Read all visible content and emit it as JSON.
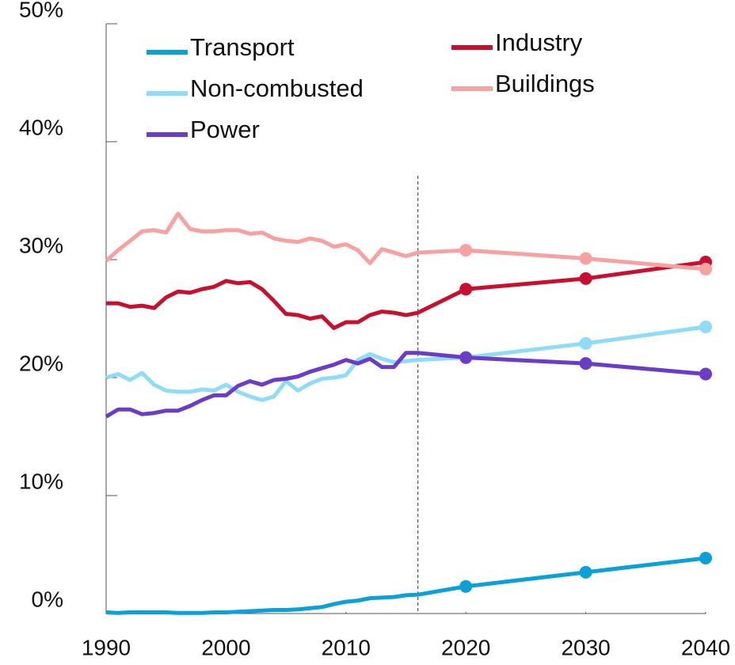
{
  "chart_data": {
    "type": "line",
    "x": [
      1990,
      1991,
      1992,
      1993,
      1994,
      1995,
      1996,
      1997,
      1998,
      1999,
      2000,
      2001,
      2002,
      2003,
      2004,
      2005,
      2006,
      2007,
      2008,
      2009,
      2010,
      2011,
      2012,
      2013,
      2014,
      2015,
      2016,
      2020,
      2030,
      2040
    ],
    "series": [
      {
        "name": "Transport",
        "color": "#0aa0d8",
        "values": [
          0.1,
          0.05,
          0.1,
          0.1,
          0.1,
          0.1,
          0.05,
          0.05,
          0.05,
          0.1,
          0.1,
          0.15,
          0.2,
          0.25,
          0.3,
          0.3,
          0.35,
          0.45,
          0.55,
          0.8,
          1.0,
          1.1,
          1.3,
          1.35,
          1.4,
          1.55,
          1.6,
          2.3,
          3.5,
          4.7
        ]
      },
      {
        "name": "Industry",
        "color": "#c8102e",
        "values": [
          26.3,
          26.3,
          26.0,
          26.1,
          25.9,
          26.8,
          27.3,
          27.2,
          27.5,
          27.7,
          28.2,
          28.0,
          28.1,
          27.5,
          26.5,
          25.4,
          25.3,
          25.0,
          25.2,
          24.2,
          24.7,
          24.7,
          25.3,
          25.6,
          25.5,
          25.3,
          25.5,
          27.5,
          28.4,
          29.8
        ]
      },
      {
        "name": "Non-combusted",
        "color": "#8fdcf7",
        "values": [
          20.0,
          20.3,
          19.8,
          20.4,
          19.4,
          18.9,
          18.8,
          18.8,
          19.0,
          18.9,
          19.4,
          18.8,
          18.4,
          18.1,
          18.4,
          19.7,
          18.9,
          19.5,
          19.9,
          20.0,
          20.2,
          21.5,
          22.0,
          21.6,
          21.3,
          21.4,
          21.5,
          21.7,
          22.9,
          24.3
        ]
      },
      {
        "name": "Buildings",
        "color": "#f7a1a1",
        "values": [
          29.9,
          30.8,
          31.6,
          32.4,
          32.5,
          32.3,
          33.9,
          32.6,
          32.4,
          32.4,
          32.5,
          32.5,
          32.2,
          32.3,
          31.8,
          31.6,
          31.5,
          31.8,
          31.6,
          31.1,
          31.3,
          30.8,
          29.7,
          30.9,
          30.6,
          30.3,
          30.6,
          30.8,
          30.1,
          29.2
        ]
      },
      {
        "name": "Power",
        "color": "#6a3cc8",
        "values": [
          16.7,
          17.3,
          17.3,
          16.9,
          17.0,
          17.2,
          17.2,
          17.6,
          18.1,
          18.5,
          18.5,
          19.3,
          19.7,
          19.4,
          19.8,
          19.9,
          20.1,
          20.5,
          20.8,
          21.1,
          21.5,
          21.2,
          21.6,
          20.9,
          20.9,
          22.1,
          22.1,
          21.7,
          21.2,
          20.3
        ]
      }
    ],
    "divider_x": 2016,
    "xlim": [
      1990,
      2040
    ],
    "xticks": [
      1990,
      2000,
      2010,
      2020,
      2030,
      2040
    ],
    "ylim": [
      0,
      50
    ],
    "yticks": [
      {
        "value": 0,
        "label": "0%"
      },
      {
        "value": 10,
        "label": "10%"
      },
      {
        "value": 20,
        "label": "20%"
      },
      {
        "value": 30,
        "label": "30%"
      },
      {
        "value": 40,
        "label": "40%"
      },
      {
        "value": 50,
        "label": "50%"
      }
    ],
    "legend": "top"
  }
}
